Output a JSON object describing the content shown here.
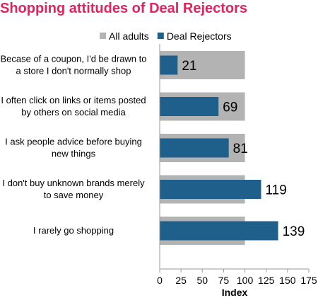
{
  "title_color": "#e0245e",
  "chart_data": {
    "type": "bar",
    "orientation": "horizontal",
    "title": "Shopping attitudes of Deal Rejectors",
    "xlabel": "Index",
    "ylabel": "",
    "xlim": [
      0,
      175
    ],
    "xticks": [
      0,
      25,
      50,
      75,
      100,
      125,
      150,
      175
    ],
    "grid": false,
    "legend_position": "top",
    "categories": [
      [
        "Becase of a coupon, I'd be drawn to",
        "a store I don't normally shop"
      ],
      [
        "I often click on links or items posted",
        "by others on social media"
      ],
      [
        "I ask people advice before buying",
        "new things"
      ],
      [
        "I don't buy unknown brands merely",
        "to save money"
      ],
      [
        "I rarely go shopping"
      ]
    ],
    "series": [
      {
        "name": "All adults",
        "color": "#b3b3b3",
        "values": [
          100,
          100,
          100,
          100,
          100
        ]
      },
      {
        "name": "Deal Rejectors",
        "color": "#1f5f8b",
        "values": [
          21,
          69,
          81,
          119,
          139
        ]
      }
    ],
    "data_labels": [
      "21",
      "69",
      "81",
      "119",
      "139"
    ]
  }
}
